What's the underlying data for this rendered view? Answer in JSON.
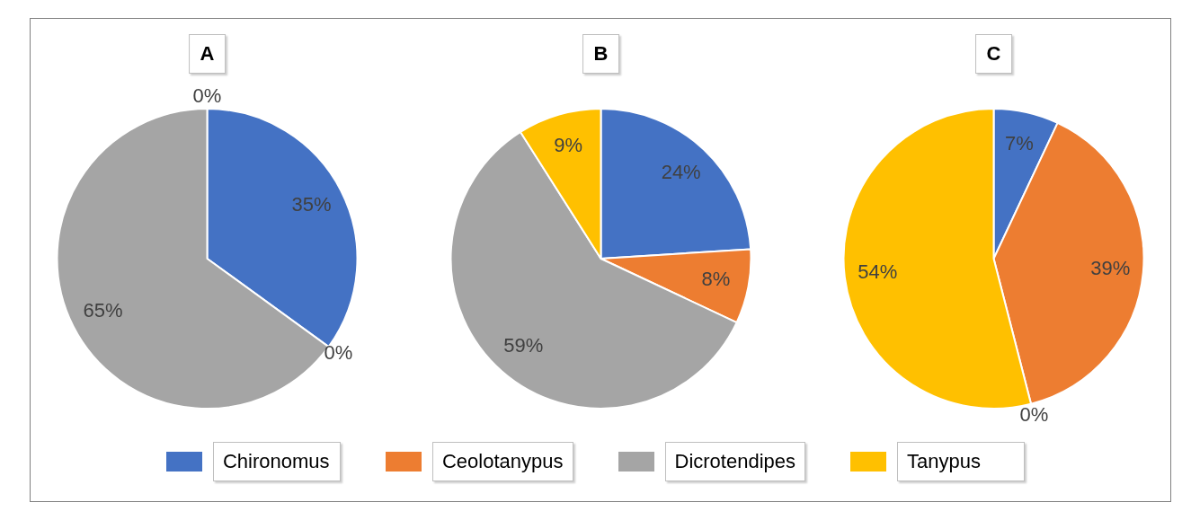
{
  "chart_data": [
    {
      "type": "pie",
      "title": "A",
      "categories": [
        "Chironomus",
        "Ceolotanypus",
        "Dicrotendipes",
        "Tanypus"
      ],
      "values": [
        35,
        0,
        65,
        0
      ],
      "value_labels": [
        "35%",
        "0%",
        "65%",
        "0%"
      ],
      "colors": [
        "#4472c4",
        "#ed7d31",
        "#a5a5a5",
        "#ffc000"
      ],
      "legend": "bottom"
    },
    {
      "type": "pie",
      "title": "B",
      "categories": [
        null,
        null,
        null,
        null
      ],
      "values": [
        24,
        8,
        59,
        9
      ],
      "value_labels": [
        "24%",
        "8%",
        "59%",
        "9%"
      ],
      "colors": [
        "#4472c4",
        "#ed7d31",
        "#a5a5a5",
        "#ffc000"
      ]
    },
    {
      "type": "pie",
      "title": "C",
      "categories": [
        null,
        null,
        null,
        null
      ],
      "values": [
        7,
        39,
        0,
        54
      ],
      "value_labels": [
        "7%",
        "39%",
        "0%",
        "54%"
      ],
      "colors": [
        "#4472c4",
        "#ed7d31",
        "#a5a5a5",
        "#ffc000"
      ]
    }
  ]
}
